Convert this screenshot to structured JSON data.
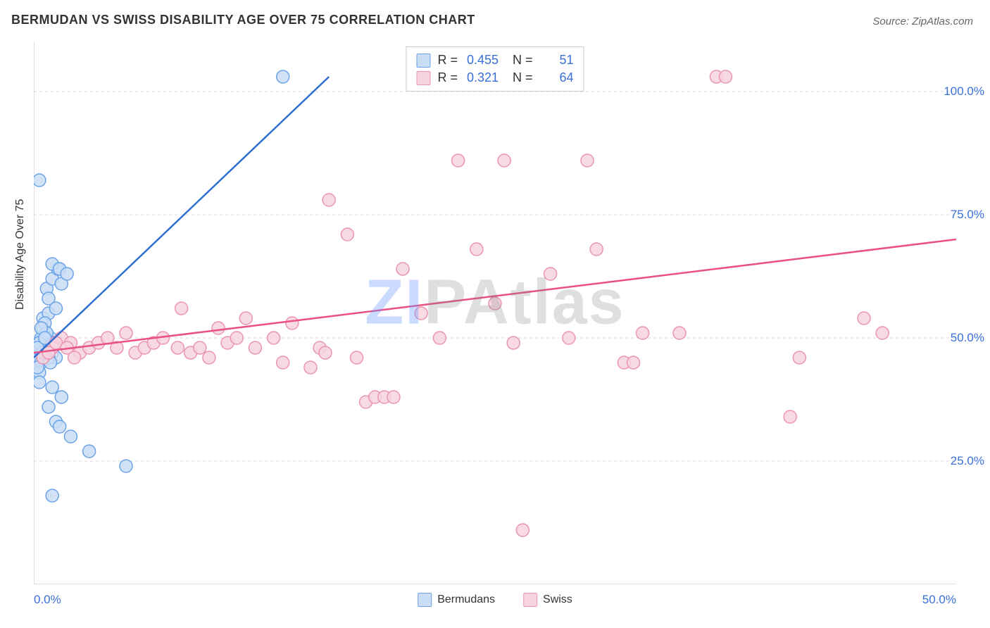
{
  "title": "BERMUDAN VS SWISS DISABILITY AGE OVER 75 CORRELATION CHART",
  "source_label": "Source: ",
  "source_value": "ZipAtlas.com",
  "y_axis_title": "Disability Age Over 75",
  "watermark": {
    "zi": "ZI",
    "rest": "PAtlas"
  },
  "chart": {
    "type": "scatter",
    "background_color": "#ffffff",
    "grid_color": "#d8d8d8",
    "axis_color": "#bfbfbf",
    "xlim": [
      0,
      50
    ],
    "ylim": [
      0,
      110
    ],
    "x_ticks_major": [
      0,
      25,
      50
    ],
    "x_ticks_minor": [
      5,
      10,
      15,
      20,
      30,
      35,
      40,
      45
    ],
    "x_tick_labels": {
      "0": "0.0%",
      "50": "50.0%"
    },
    "y_gridlines": [
      25,
      50,
      75,
      100
    ],
    "y_tick_labels": {
      "25": "25.0%",
      "50": "50.0%",
      "75": "75.0%",
      "100": "100.0%"
    },
    "tick_label_color": "#3a6fd8",
    "tick_label_fontsize": 17,
    "marker_radius": 9,
    "marker_stroke_width": 1.5,
    "series": [
      {
        "name": "Bermudans",
        "fill": "#c9ddf5",
        "stroke": "#6ba3e8",
        "line_color": "#2f6fd0",
        "line_width": 2.5,
        "R": "0.455",
        "N": "51",
        "trend": {
          "x1": 0,
          "y1": 46,
          "x2": 16,
          "y2": 103
        },
        "points": [
          [
            0.2,
            46
          ],
          [
            0.3,
            48
          ],
          [
            0.5,
            50
          ],
          [
            0.4,
            45
          ],
          [
            0.6,
            47
          ],
          [
            0.8,
            49
          ],
          [
            0.3,
            43
          ],
          [
            0.5,
            52
          ],
          [
            0.7,
            51
          ],
          [
            0.9,
            48
          ],
          [
            0.2,
            44
          ],
          [
            0.4,
            49
          ],
          [
            1.0,
            47
          ],
          [
            1.2,
            46
          ],
          [
            0.5,
            54
          ],
          [
            0.8,
            55
          ],
          [
            0.3,
            41
          ],
          [
            0.6,
            53
          ],
          [
            0.4,
            47
          ],
          [
            0.9,
            50
          ],
          [
            0.7,
            60
          ],
          [
            1.0,
            62
          ],
          [
            1.3,
            64
          ],
          [
            1.5,
            61
          ],
          [
            0.8,
            58
          ],
          [
            1.2,
            56
          ],
          [
            1.0,
            40
          ],
          [
            1.5,
            38
          ],
          [
            0.8,
            36
          ],
          [
            1.2,
            33
          ],
          [
            1.4,
            32
          ],
          [
            2.0,
            30
          ],
          [
            3.0,
            27
          ],
          [
            5.0,
            24
          ],
          [
            0.3,
            82
          ],
          [
            1.0,
            65
          ],
          [
            1.4,
            64
          ],
          [
            1.8,
            63
          ],
          [
            1.0,
            18
          ],
          [
            13.5,
            103
          ],
          [
            0.4,
            50
          ],
          [
            0.6,
            48
          ],
          [
            0.8,
            46
          ],
          [
            0.3,
            49
          ],
          [
            0.5,
            47
          ],
          [
            0.7,
            51
          ],
          [
            0.2,
            48
          ],
          [
            0.9,
            45
          ],
          [
            1.1,
            49
          ],
          [
            0.4,
            52
          ],
          [
            0.6,
            50
          ]
        ]
      },
      {
        "name": "Swiss",
        "fill": "#f7d3de",
        "stroke": "#ea94b2",
        "line_color": "#e95087",
        "line_width": 2.5,
        "R": "0.321",
        "N": "64",
        "trend": {
          "x1": 0,
          "y1": 47,
          "x2": 50,
          "y2": 70
        },
        "points": [
          [
            1.0,
            48
          ],
          [
            1.5,
            50
          ],
          [
            2.0,
            49
          ],
          [
            2.5,
            47
          ],
          [
            3.0,
            48
          ],
          [
            3.5,
            49
          ],
          [
            4.0,
            50
          ],
          [
            4.5,
            48
          ],
          [
            5.0,
            51
          ],
          [
            5.5,
            47
          ],
          [
            6.0,
            48
          ],
          [
            6.5,
            49
          ],
          [
            7.0,
            50
          ],
          [
            7.8,
            48
          ],
          [
            8.0,
            56
          ],
          [
            8.5,
            47
          ],
          [
            9.0,
            48
          ],
          [
            9.5,
            46
          ],
          [
            10.0,
            52
          ],
          [
            10.5,
            49
          ],
          [
            11.0,
            50
          ],
          [
            11.5,
            54
          ],
          [
            12.0,
            48
          ],
          [
            13.0,
            50
          ],
          [
            13.5,
            45
          ],
          [
            14.0,
            53
          ],
          [
            15.0,
            44
          ],
          [
            15.5,
            48
          ],
          [
            15.8,
            47
          ],
          [
            16.0,
            78
          ],
          [
            17.0,
            71
          ],
          [
            17.5,
            46
          ],
          [
            18.0,
            37
          ],
          [
            18.5,
            38
          ],
          [
            19.0,
            38
          ],
          [
            19.5,
            38
          ],
          [
            20.0,
            64
          ],
          [
            21.0,
            55
          ],
          [
            22.0,
            50
          ],
          [
            23.0,
            86
          ],
          [
            24.0,
            68
          ],
          [
            25.0,
            57
          ],
          [
            25.5,
            86
          ],
          [
            26.0,
            49
          ],
          [
            26.5,
            11
          ],
          [
            28.0,
            63
          ],
          [
            29.0,
            50
          ],
          [
            30.0,
            86
          ],
          [
            30.5,
            68
          ],
          [
            32.0,
            45
          ],
          [
            32.5,
            45
          ],
          [
            33.0,
            51
          ],
          [
            35.0,
            51
          ],
          [
            37.0,
            103
          ],
          [
            37.5,
            103
          ],
          [
            41.0,
            34
          ],
          [
            41.5,
            46
          ],
          [
            45.0,
            54
          ],
          [
            46.0,
            51
          ],
          [
            0.5,
            46
          ],
          [
            0.8,
            47
          ],
          [
            1.2,
            49
          ],
          [
            1.8,
            48
          ],
          [
            2.2,
            46
          ]
        ]
      }
    ]
  },
  "legend": {
    "items": [
      {
        "label": "Bermudans",
        "fill": "#c9ddf5",
        "stroke": "#6ba3e8"
      },
      {
        "label": "Swiss",
        "fill": "#f7d3de",
        "stroke": "#ea94b2"
      }
    ]
  }
}
